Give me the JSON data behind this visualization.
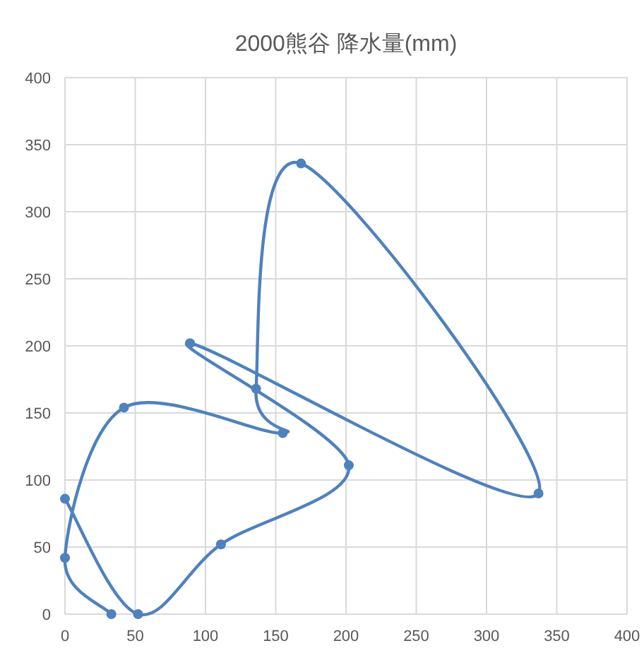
{
  "chart_data": {
    "type": "line",
    "title": "2000熊谷 降水量(mm)",
    "x": [
      33,
      0,
      42,
      155,
      136,
      168,
      337,
      89,
      202,
      111,
      52,
      0
    ],
    "series": [
      {
        "color": "#4f81bd",
        "values": [
          0,
          42,
          154,
          135,
          168,
          336,
          90,
          202,
          111,
          52,
          0,
          86
        ]
      }
    ],
    "xlim": [
      0,
      400
    ],
    "xticks": [
      0,
      50,
      100,
      150,
      200,
      250,
      300,
      350,
      400
    ],
    "ylim": [
      0,
      400
    ],
    "yticks": [
      0,
      50,
      100,
      150,
      200,
      250,
      300,
      350,
      400
    ],
    "grid": true,
    "marker": "circle",
    "line_style": "solid"
  }
}
